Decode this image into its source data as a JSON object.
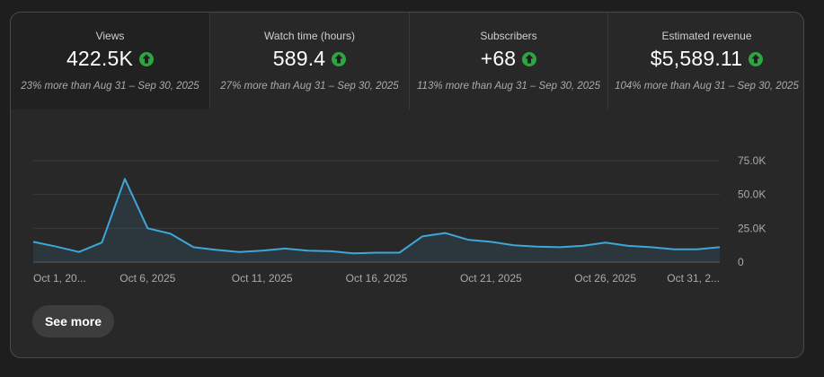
{
  "metrics": [
    {
      "title": "Views",
      "value": "422.5K",
      "subtitle": "23% more than Aug 31 – Sep 30, 2025",
      "trend": "up-arrow-icon"
    },
    {
      "title": "Watch time (hours)",
      "value": "589.4",
      "subtitle": "27% more than Aug 31 – Sep 30, 2025",
      "trend": "up-arrow-icon"
    },
    {
      "title": "Subscribers",
      "value": "+68",
      "subtitle": "113% more than Aug 31 – Sep 30, 2025",
      "trend": "up-arrow-icon"
    },
    {
      "title": "Estimated revenue",
      "value": "$5,589.11",
      "subtitle": "104% more than Aug 31 – Sep 30, 2025",
      "trend": "up-arrow-icon"
    }
  ],
  "colors": {
    "card_bg": "#282828",
    "active_tab_bg": "#212121",
    "line": "#3ea6d8",
    "up_badge": "#2ba640"
  },
  "chart_data": {
    "type": "area",
    "x": [
      "Oct 1",
      "Oct 2",
      "Oct 3",
      "Oct 4",
      "Oct 5",
      "Oct 6",
      "Oct 7",
      "Oct 8",
      "Oct 9",
      "Oct 10",
      "Oct 11",
      "Oct 12",
      "Oct 13",
      "Oct 14",
      "Oct 15",
      "Oct 16",
      "Oct 17",
      "Oct 18",
      "Oct 19",
      "Oct 20",
      "Oct 21",
      "Oct 22",
      "Oct 23",
      "Oct 24",
      "Oct 25",
      "Oct 26",
      "Oct 27",
      "Oct 28",
      "Oct 29",
      "Oct 30",
      "Oct 31"
    ],
    "series": [
      {
        "values": [
          15000,
          11500,
          7500,
          14500,
          61500,
          25000,
          21000,
          11000,
          9000,
          7500,
          8500,
          10000,
          8500,
          8000,
          6500,
          7000,
          7000,
          19000,
          21500,
          16500,
          15000,
          12500,
          11500,
          11000,
          12000,
          14500,
          12000,
          11000,
          9500,
          9500,
          11000
        ]
      }
    ],
    "x_tick_labels": [
      "Oct 1, 20...",
      "Oct 6, 2025",
      "Oct 11, 2025",
      "Oct 16, 2025",
      "Oct 21, 2025",
      "Oct 26, 2025",
      "Oct 31, 2..."
    ],
    "y_tick_labels": [
      "0",
      "25.0K",
      "50.0K",
      "75.0K"
    ],
    "y_ticks": [
      0,
      25000,
      50000,
      75000
    ],
    "ylim": [
      0,
      75000
    ],
    "grid": true
  },
  "actions": {
    "see_more_label": "See more"
  }
}
